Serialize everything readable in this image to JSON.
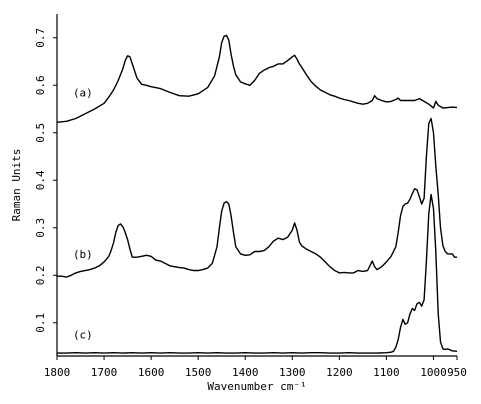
{
  "chart_data": {
    "type": "line",
    "xlabel": "Wavenumber cm⁻¹",
    "ylabel": "Raman Units",
    "xlim": [
      1800,
      950
    ],
    "ylim": [
      0.03,
      0.75
    ],
    "x_reversed": true,
    "grid": false,
    "xticks": [
      {
        "value": 1800,
        "label": "1800"
      },
      {
        "value": 1700,
        "label": "1700"
      },
      {
        "value": 1600,
        "label": "1600"
      },
      {
        "value": 1500,
        "label": "1500"
      },
      {
        "value": 1400,
        "label": "1400"
      },
      {
        "value": 1300,
        "label": "1300"
      },
      {
        "value": 1200,
        "label": "1200"
      },
      {
        "value": 1100,
        "label": "1100"
      },
      {
        "value": 1000,
        "label": "1000"
      },
      {
        "value": 950,
        "label": "950"
      }
    ],
    "yticks": [
      {
        "value": 0.1,
        "label": "0.1"
      },
      {
        "value": 0.2,
        "label": "0.2"
      },
      {
        "value": 0.3,
        "label": "0.3"
      },
      {
        "value": 0.4,
        "label": "0.4"
      },
      {
        "value": 0.5,
        "label": "0.5"
      },
      {
        "value": 0.6,
        "label": "0.6"
      },
      {
        "value": 0.7,
        "label": "0.7"
      }
    ],
    "series": [
      {
        "name": "(a)",
        "label_at": [
          1745,
          0.585
        ],
        "x": [
          1800,
          1780,
          1760,
          1740,
          1720,
          1700,
          1690,
          1680,
          1670,
          1660,
          1655,
          1650,
          1645,
          1640,
          1630,
          1620,
          1610,
          1600,
          1580,
          1560,
          1540,
          1520,
          1500,
          1480,
          1465,
          1455,
          1450,
          1445,
          1440,
          1435,
          1430,
          1425,
          1420,
          1410,
          1400,
          1390,
          1380,
          1370,
          1360,
          1350,
          1340,
          1330,
          1320,
          1310,
          1300,
          1295,
          1290,
          1285,
          1280,
          1270,
          1260,
          1250,
          1240,
          1230,
          1220,
          1210,
          1200,
          1190,
          1180,
          1170,
          1160,
          1150,
          1140,
          1130,
          1125,
          1120,
          1110,
          1100,
          1090,
          1080,
          1075,
          1070,
          1060,
          1050,
          1040,
          1030,
          1020,
          1010,
          1005,
          1000,
          995,
          990,
          980,
          970,
          960,
          950
        ],
        "y": [
          0.522,
          0.524,
          0.53,
          0.54,
          0.55,
          0.562,
          0.575,
          0.59,
          0.61,
          0.635,
          0.652,
          0.662,
          0.66,
          0.645,
          0.615,
          0.602,
          0.6,
          0.597,
          0.593,
          0.585,
          0.578,
          0.577,
          0.582,
          0.595,
          0.62,
          0.66,
          0.69,
          0.703,
          0.705,
          0.695,
          0.665,
          0.64,
          0.622,
          0.607,
          0.603,
          0.6,
          0.61,
          0.625,
          0.632,
          0.637,
          0.64,
          0.645,
          0.645,
          0.652,
          0.66,
          0.663,
          0.655,
          0.645,
          0.638,
          0.622,
          0.608,
          0.598,
          0.59,
          0.585,
          0.58,
          0.577,
          0.573,
          0.57,
          0.568,
          0.565,
          0.562,
          0.56,
          0.562,
          0.568,
          0.578,
          0.572,
          0.568,
          0.565,
          0.566,
          0.57,
          0.573,
          0.568,
          0.568,
          0.568,
          0.568,
          0.572,
          0.566,
          0.56,
          0.556,
          0.552,
          0.566,
          0.558,
          0.552,
          0.553,
          0.554,
          0.553
        ]
      },
      {
        "name": "(b)",
        "label_at": [
          1745,
          0.245
        ],
        "x": [
          1800,
          1790,
          1780,
          1770,
          1760,
          1750,
          1740,
          1730,
          1720,
          1710,
          1700,
          1690,
          1685,
          1680,
          1675,
          1670,
          1665,
          1660,
          1655,
          1650,
          1645,
          1640,
          1630,
          1620,
          1610,
          1600,
          1590,
          1580,
          1570,
          1560,
          1550,
          1540,
          1530,
          1520,
          1510,
          1500,
          1490,
          1480,
          1470,
          1460,
          1455,
          1450,
          1445,
          1440,
          1435,
          1430,
          1425,
          1420,
          1410,
          1400,
          1390,
          1380,
          1370,
          1360,
          1350,
          1340,
          1330,
          1320,
          1310,
          1300,
          1295,
          1290,
          1285,
          1280,
          1270,
          1260,
          1250,
          1240,
          1230,
          1220,
          1210,
          1200,
          1190,
          1180,
          1170,
          1160,
          1150,
          1140,
          1135,
          1130,
          1125,
          1120,
          1110,
          1100,
          1090,
          1080,
          1075,
          1070,
          1065,
          1060,
          1055,
          1050,
          1045,
          1040,
          1035,
          1030,
          1025,
          1020,
          1015,
          1010,
          1005,
          1000,
          995,
          990,
          985,
          980,
          975,
          970,
          960,
          955,
          950
        ],
        "y": [
          0.198,
          0.198,
          0.196,
          0.2,
          0.205,
          0.208,
          0.21,
          0.212,
          0.215,
          0.22,
          0.228,
          0.24,
          0.252,
          0.268,
          0.29,
          0.305,
          0.308,
          0.302,
          0.29,
          0.275,
          0.255,
          0.238,
          0.238,
          0.24,
          0.242,
          0.24,
          0.232,
          0.23,
          0.225,
          0.22,
          0.218,
          0.216,
          0.215,
          0.212,
          0.21,
          0.21,
          0.212,
          0.215,
          0.225,
          0.26,
          0.3,
          0.335,
          0.352,
          0.355,
          0.35,
          0.325,
          0.29,
          0.26,
          0.245,
          0.242,
          0.243,
          0.25,
          0.25,
          0.252,
          0.26,
          0.272,
          0.278,
          0.275,
          0.28,
          0.295,
          0.31,
          0.295,
          0.27,
          0.262,
          0.255,
          0.25,
          0.245,
          0.238,
          0.228,
          0.218,
          0.21,
          0.205,
          0.206,
          0.205,
          0.205,
          0.21,
          0.208,
          0.21,
          0.22,
          0.23,
          0.218,
          0.212,
          0.218,
          0.228,
          0.24,
          0.26,
          0.29,
          0.325,
          0.345,
          0.35,
          0.352,
          0.36,
          0.372,
          0.382,
          0.38,
          0.365,
          0.35,
          0.362,
          0.45,
          0.52,
          0.53,
          0.5,
          0.43,
          0.37,
          0.3,
          0.262,
          0.25,
          0.245,
          0.245,
          0.238,
          0.238
        ]
      },
      {
        "name": "(c)",
        "label_at": [
          1745,
          0.075
        ],
        "x": [
          1800,
          1780,
          1760,
          1740,
          1720,
          1700,
          1680,
          1660,
          1640,
          1620,
          1600,
          1580,
          1560,
          1540,
          1520,
          1500,
          1480,
          1460,
          1440,
          1420,
          1400,
          1380,
          1360,
          1340,
          1320,
          1300,
          1280,
          1260,
          1240,
          1220,
          1200,
          1180,
          1160,
          1140,
          1120,
          1100,
          1090,
          1085,
          1080,
          1075,
          1070,
          1065,
          1060,
          1055,
          1050,
          1045,
          1040,
          1035,
          1030,
          1025,
          1020,
          1015,
          1010,
          1005,
          1000,
          995,
          990,
          985,
          980,
          975,
          970,
          960,
          950
        ],
        "y": [
          0.036,
          0.036,
          0.037,
          0.036,
          0.037,
          0.036,
          0.037,
          0.036,
          0.037,
          0.036,
          0.037,
          0.036,
          0.037,
          0.036,
          0.036,
          0.037,
          0.036,
          0.037,
          0.036,
          0.036,
          0.037,
          0.036,
          0.036,
          0.037,
          0.036,
          0.037,
          0.036,
          0.037,
          0.037,
          0.036,
          0.036,
          0.037,
          0.036,
          0.036,
          0.036,
          0.037,
          0.038,
          0.04,
          0.048,
          0.065,
          0.09,
          0.107,
          0.097,
          0.1,
          0.118,
          0.13,
          0.126,
          0.14,
          0.143,
          0.135,
          0.148,
          0.23,
          0.33,
          0.37,
          0.34,
          0.25,
          0.12,
          0.06,
          0.045,
          0.044,
          0.045,
          0.041,
          0.04
        ]
      }
    ]
  }
}
